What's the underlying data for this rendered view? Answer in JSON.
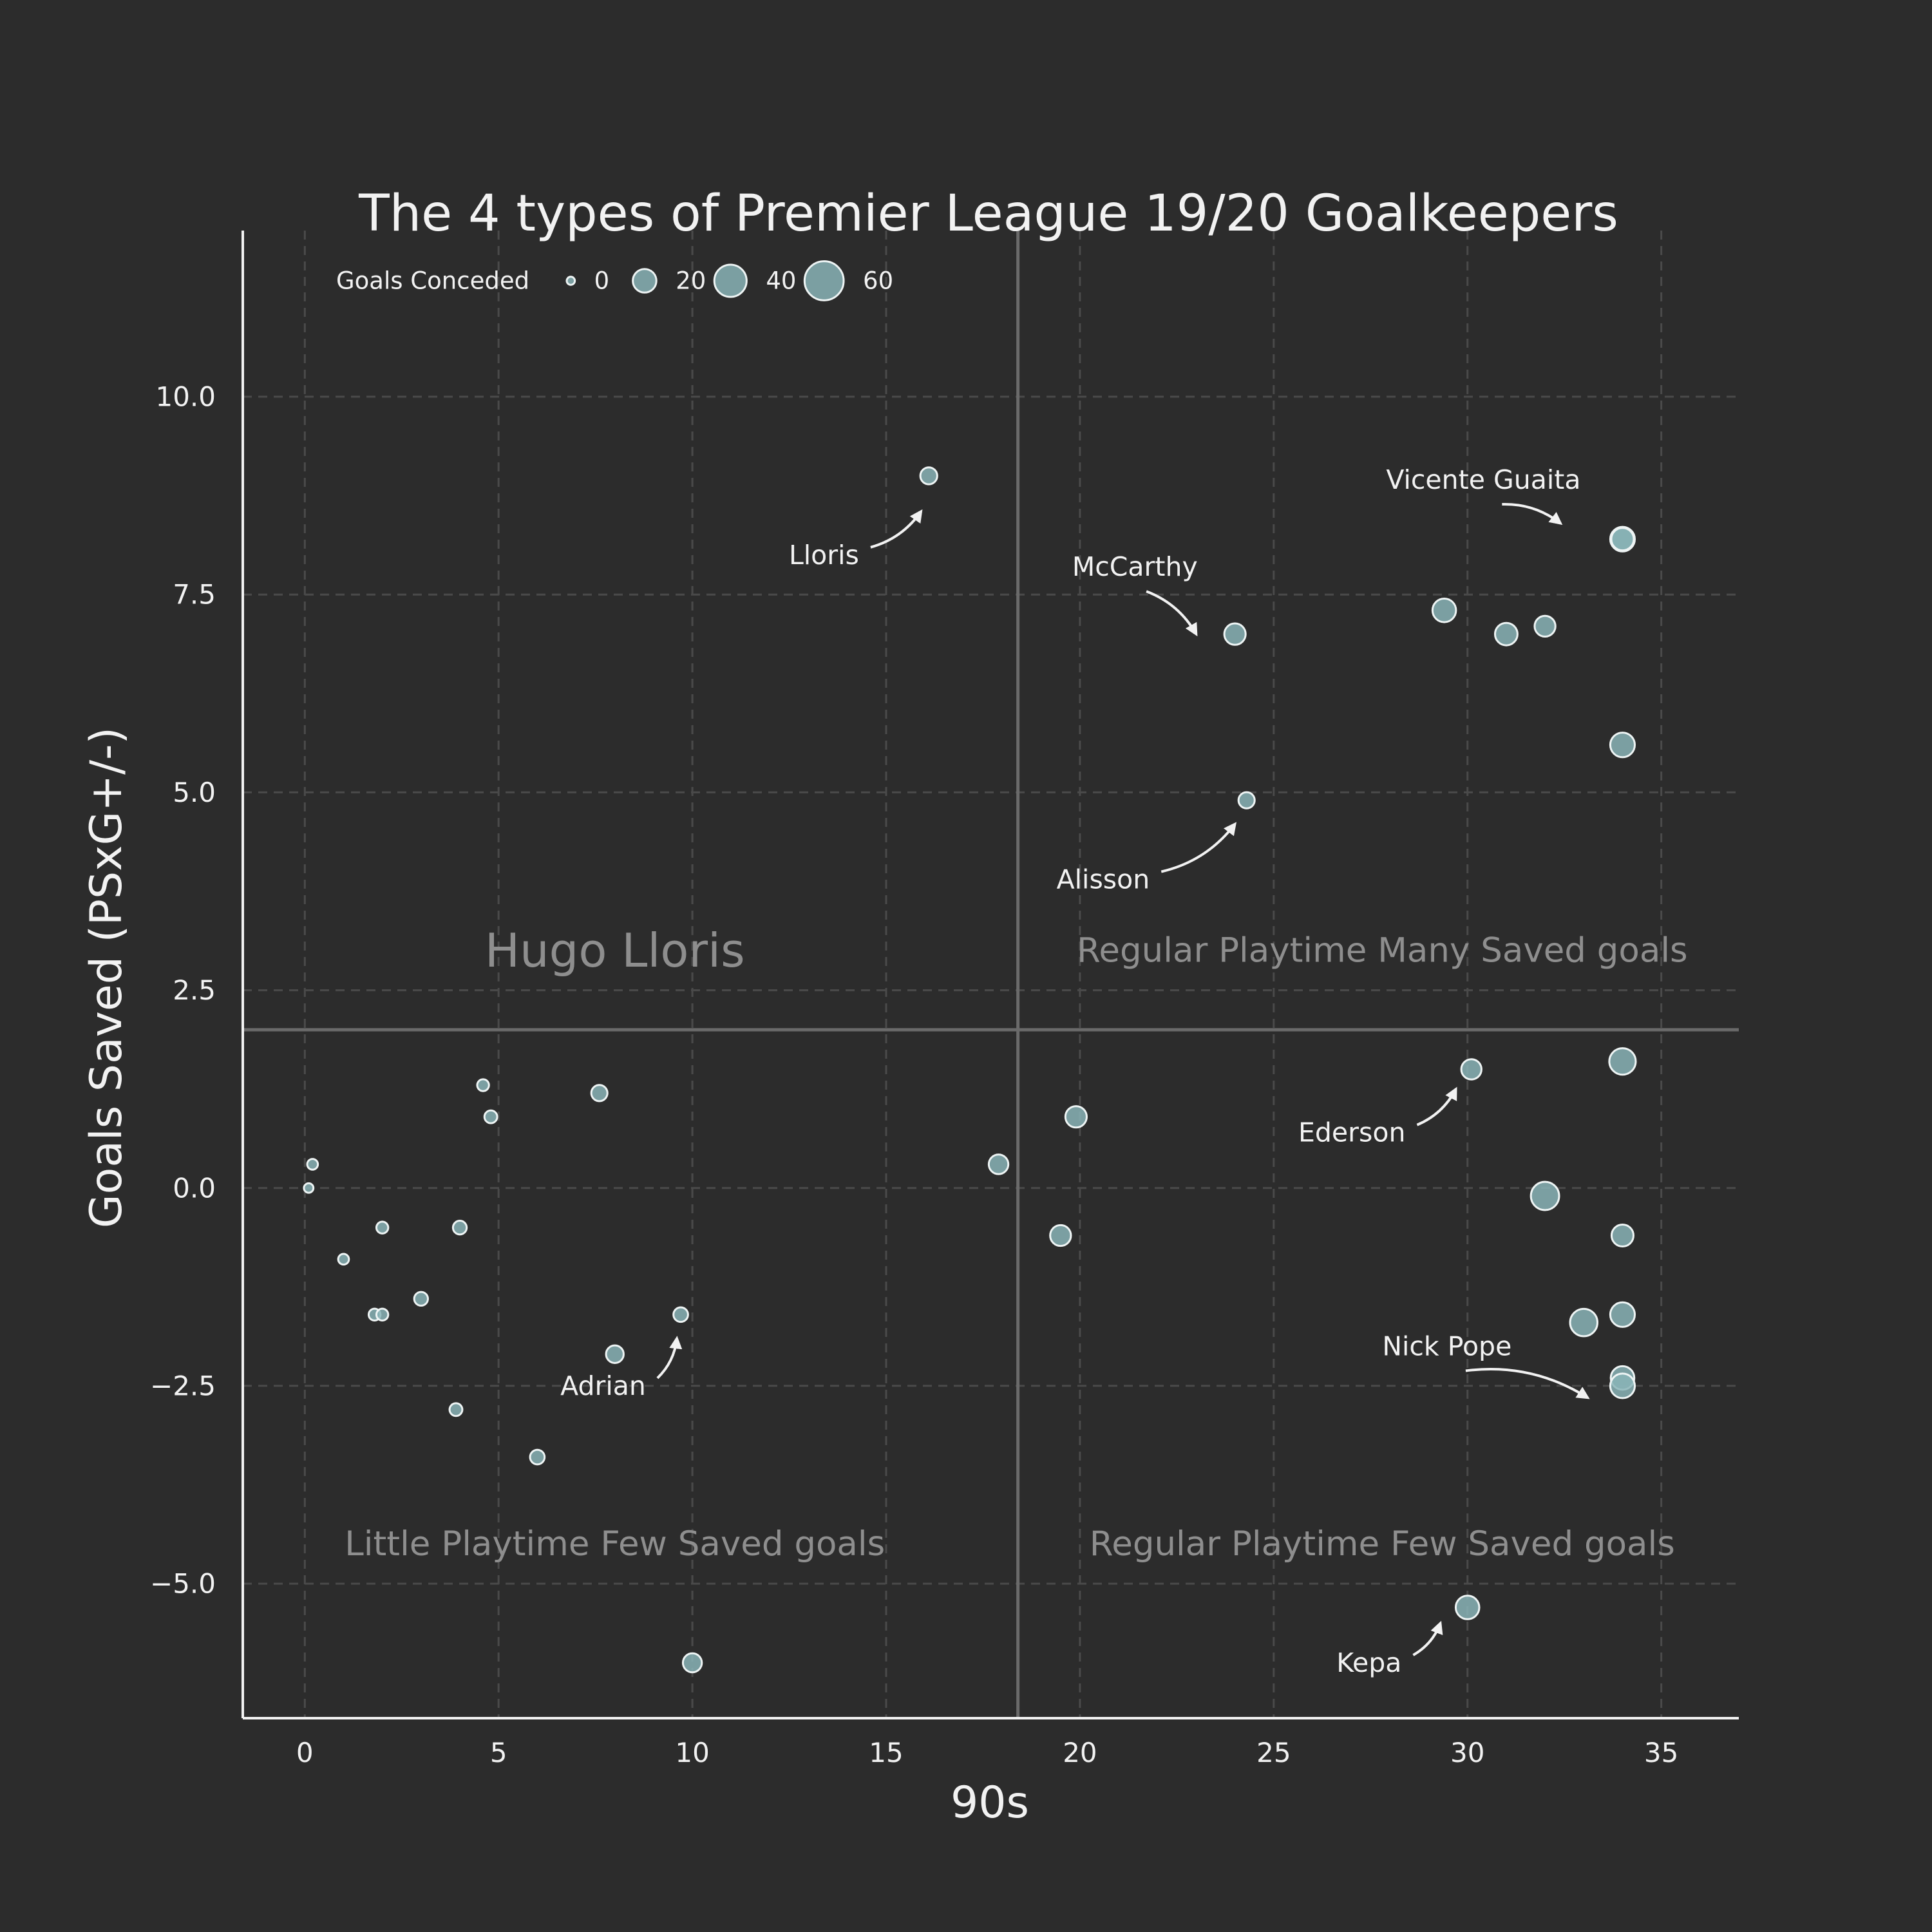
{
  "chart_data": {
    "type": "scatter",
    "title": "The 4 types of Premier League 19/20 Goalkeepers",
    "xlabel": "90s",
    "ylabel": "Goals Saved (PSxG+/-)",
    "xlim": [
      -1.6,
      37
    ],
    "ylim": [
      -6.7,
      12.1
    ],
    "xticks": [
      0,
      5,
      10,
      15,
      20,
      25,
      30,
      35
    ],
    "yticks": [
      -5.0,
      -2.5,
      0.0,
      2.5,
      5.0,
      7.5,
      10.0
    ],
    "xtick_labels": [
      "0",
      "5",
      "10",
      "15",
      "20",
      "25",
      "30",
      "35"
    ],
    "ytick_labels": [
      "−5.0",
      "−2.5",
      "0.0",
      "2.5",
      "5.0",
      "7.5",
      "10.0"
    ],
    "grid": true,
    "reference_lines": {
      "x": 18.4,
      "y": 2.0
    },
    "size_variable": "Goals Conceded",
    "legend": {
      "title": "Goals Conceded",
      "placement": "top-left",
      "entries": [
        {
          "label": "0",
          "size": 0
        },
        {
          "label": "20",
          "size": 20
        },
        {
          "label": "40",
          "size": 40
        },
        {
          "label": "60",
          "size": 60
        }
      ]
    },
    "quadrant_labels": [
      {
        "text": "Hugo Lloris",
        "x": 8.0,
        "y": 3.0,
        "tone": "large"
      },
      {
        "text": "Regular Playtime Many Saved goals",
        "x": 27.8,
        "y": 3.0,
        "tone": "normal"
      },
      {
        "text": "Little Playtime Few Saved goals",
        "x": 8.0,
        "y": -4.5,
        "tone": "normal"
      },
      {
        "text": "Regular Playtime Few Saved goals",
        "x": 27.8,
        "y": -4.5,
        "tone": "normal"
      }
    ],
    "points": [
      {
        "x": 0.1,
        "y": 0.0,
        "size": 1
      },
      {
        "x": 0.2,
        "y": 0.3,
        "size": 2
      },
      {
        "x": 1.0,
        "y": -0.9,
        "size": 2
      },
      {
        "x": 1.8,
        "y": -1.6,
        "size": 3
      },
      {
        "x": 2.0,
        "y": -1.6,
        "size": 3
      },
      {
        "x": 2.0,
        "y": -0.5,
        "size": 3
      },
      {
        "x": 3.0,
        "y": -1.4,
        "size": 5
      },
      {
        "x": 3.9,
        "y": -2.8,
        "size": 4
      },
      {
        "x": 4.0,
        "y": -0.5,
        "size": 5
      },
      {
        "x": 4.6,
        "y": 1.3,
        "size": 3
      },
      {
        "x": 4.8,
        "y": 0.9,
        "size": 4
      },
      {
        "x": 6.0,
        "y": -3.4,
        "size": 6
      },
      {
        "x": 7.6,
        "y": 1.2,
        "size": 8
      },
      {
        "x": 8.0,
        "y": -2.1,
        "size": 10
      },
      {
        "x": 9.7,
        "y": -1.6,
        "size": 6
      },
      {
        "x": 10.0,
        "y": -6.0,
        "size": 12
      },
      {
        "x": 16.1,
        "y": 9.0,
        "size": 9
      },
      {
        "x": 17.9,
        "y": 0.3,
        "size": 13
      },
      {
        "x": 19.5,
        "y": -0.6,
        "size": 15
      },
      {
        "x": 19.9,
        "y": 0.9,
        "size": 16
      },
      {
        "x": 24.0,
        "y": 7.0,
        "size": 16
      },
      {
        "x": 24.3,
        "y": 4.9,
        "size": 8
      },
      {
        "x": 29.4,
        "y": 7.3,
        "size": 20
      },
      {
        "x": 30.0,
        "y": -5.3,
        "size": 20
      },
      {
        "x": 30.1,
        "y": 1.5,
        "size": 14
      },
      {
        "x": 31.0,
        "y": 7.0,
        "size": 18
      },
      {
        "x": 32.0,
        "y": 7.1,
        "size": 15
      },
      {
        "x": 32.0,
        "y": -0.1,
        "size": 30
      },
      {
        "x": 33.0,
        "y": -1.7,
        "size": 28
      },
      {
        "x": 34.0,
        "y": 8.2,
        "size": 22
      },
      {
        "x": 34.0,
        "y": 8.2,
        "size": 18
      },
      {
        "x": 34.0,
        "y": 5.6,
        "size": 22
      },
      {
        "x": 34.0,
        "y": 1.6,
        "size": 26
      },
      {
        "x": 34.0,
        "y": -0.6,
        "size": 17
      },
      {
        "x": 34.0,
        "y": -1.6,
        "size": 22
      },
      {
        "x": 34.0,
        "y": -2.4,
        "size": 20
      },
      {
        "x": 34.0,
        "y": -2.5,
        "size": 22
      }
    ],
    "annotations": [
      {
        "text": "Lloris",
        "text_x": 14.3,
        "text_y": 8.0,
        "target_x": 15.9,
        "target_y": 8.55,
        "ha": "right"
      },
      {
        "text": "McCarthy",
        "text_x": 19.8,
        "text_y": 7.85,
        "target_x": 23.0,
        "target_y": 7.0,
        "ha": "left"
      },
      {
        "text": "Vicente Guaita",
        "text_x": 27.9,
        "text_y": 8.95,
        "target_x": 32.4,
        "target_y": 8.4,
        "ha": "left"
      },
      {
        "text": "Alisson",
        "text_x": 21.8,
        "text_y": 3.9,
        "target_x": 24.0,
        "target_y": 4.6,
        "ha": "right"
      },
      {
        "text": "Ederson",
        "text_x": 28.4,
        "text_y": 0.7,
        "target_x": 29.7,
        "target_y": 1.25,
        "ha": "right"
      },
      {
        "text": "Nick Pope",
        "text_x": 27.8,
        "text_y": -2.0,
        "target_x": 33.1,
        "target_y": -2.65,
        "ha": "left"
      },
      {
        "text": "Adrian",
        "text_x": 8.8,
        "text_y": -2.5,
        "target_x": 9.6,
        "target_y": -1.9,
        "ha": "right"
      },
      {
        "text": "Kepa",
        "text_x": 28.3,
        "text_y": -6.0,
        "target_x": 29.3,
        "target_y": -5.5,
        "ha": "right"
      }
    ],
    "colors": {
      "background": "#2c2c2c",
      "marker_fill": "#89b4b7",
      "marker_edge": "#eef4f4",
      "text": "#f2f2f2",
      "axis": "#f2f2f2",
      "grid": "#4a4a4a",
      "reference_line": "#6a6a6a",
      "quadrant_text": "#8e8e8e"
    }
  }
}
